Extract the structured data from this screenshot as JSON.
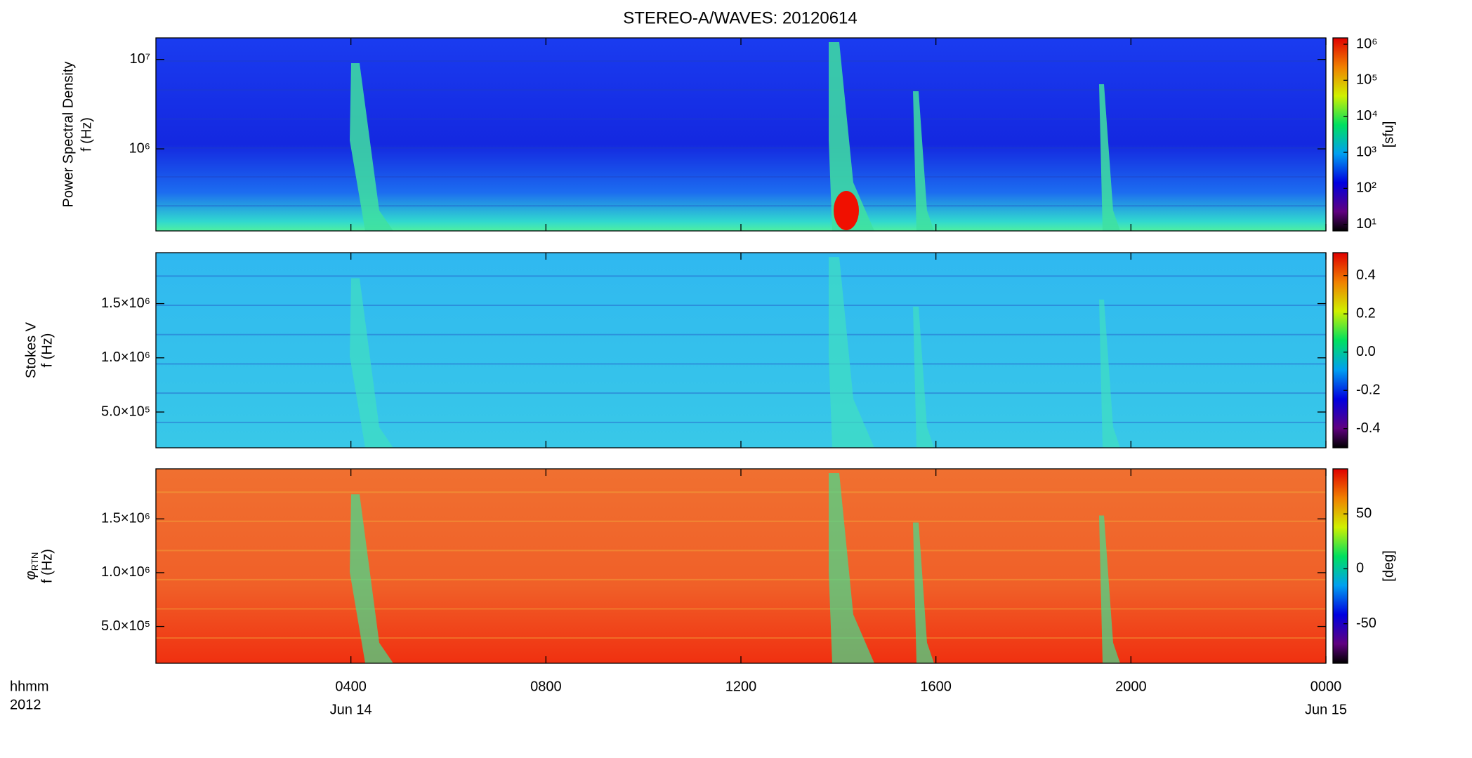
{
  "title": "STEREO-A/WAVES: 20120614",
  "chart_data": [
    {
      "type": "spectrogram",
      "ylabel": [
        "Power Spectral Density",
        "f (Hz)"
      ],
      "log_y": true,
      "ylim": [
        121000,
        17400000
      ],
      "yticks": [
        {
          "value": 1000000,
          "label": "10⁶"
        },
        {
          "value": 10000000,
          "label": "10⁷"
        }
      ],
      "xlim": [
        0,
        24
      ],
      "xticks": [
        {
          "value": 4,
          "label": "0400"
        },
        {
          "value": 8,
          "label": "0800"
        },
        {
          "value": 12,
          "label": "1200"
        },
        {
          "value": 16,
          "label": "1600"
        },
        {
          "value": 20,
          "label": "2000"
        },
        {
          "value": 24,
          "label": "0000"
        }
      ],
      "colorbar": {
        "log": true,
        "lim": [
          6.6,
          1500000
        ],
        "label": "[sfu]",
        "ticks": [
          {
            "value": 10,
            "label": "10¹"
          },
          {
            "value": 100,
            "label": "10²"
          },
          {
            "value": 1000,
            "label": "10³"
          },
          {
            "value": 10000,
            "label": "10⁴"
          },
          {
            "value": 100000,
            "label": "10⁵"
          },
          {
            "value": 1000000,
            "label": "10⁶"
          }
        ]
      }
    },
    {
      "type": "spectrogram",
      "ylabel": [
        "Stokes V",
        "f (Hz)"
      ],
      "log_y": false,
      "ylim": [
        170000,
        1970000
      ],
      "yticks": [
        {
          "value": 500000,
          "label": "5.0×10⁵"
        },
        {
          "value": 1000000,
          "label": "1.0×10⁶"
        },
        {
          "value": 1500000,
          "label": "1.5×10⁶"
        }
      ],
      "xlim": [
        0,
        24
      ],
      "xticks": [
        {
          "value": 4,
          "label": "0400"
        },
        {
          "value": 8,
          "label": "0800"
        },
        {
          "value": 12,
          "label": "1200"
        },
        {
          "value": 16,
          "label": "1600"
        },
        {
          "value": 20,
          "label": "2000"
        },
        {
          "value": 24,
          "label": "0000"
        }
      ],
      "colorbar": {
        "log": false,
        "lim": [
          -0.5,
          0.52
        ],
        "ticks": [
          -0.4,
          -0.2,
          {
            "value": 0,
            "label": "0.0"
          },
          0.2,
          0.4
        ]
      }
    },
    {
      "type": "spectrogram",
      "ylabel": [
        "φ",
        "RTN",
        "f (Hz)"
      ],
      "log_y": false,
      "ylim": [
        158000,
        1965000
      ],
      "yticks": [
        {
          "value": 500000,
          "label": "5.0×10⁵"
        },
        {
          "value": 1000000,
          "label": "1.0×10⁶"
        },
        {
          "value": 1500000,
          "label": "1.5×10⁶"
        }
      ],
      "xlim": [
        0,
        24
      ],
      "xticks": [
        {
          "value": 4,
          "label": "0400"
        },
        {
          "value": 8,
          "label": "0800"
        },
        {
          "value": 12,
          "label": "1200"
        },
        {
          "value": 16,
          "label": "1600"
        },
        {
          "value": 20,
          "label": "2000"
        },
        {
          "value": 24,
          "label": "0000"
        }
      ],
      "xtick_dates": [
        {
          "value": 4,
          "label": "Jun 14"
        },
        {
          "value": 24,
          "label": "Jun 15"
        }
      ],
      "xlabel": "hhmm",
      "year_label": "2012",
      "colorbar": {
        "log": false,
        "lim": [
          -86,
          91
        ],
        "label": "[deg]",
        "ticks": [
          -50,
          0,
          50
        ]
      }
    }
  ]
}
